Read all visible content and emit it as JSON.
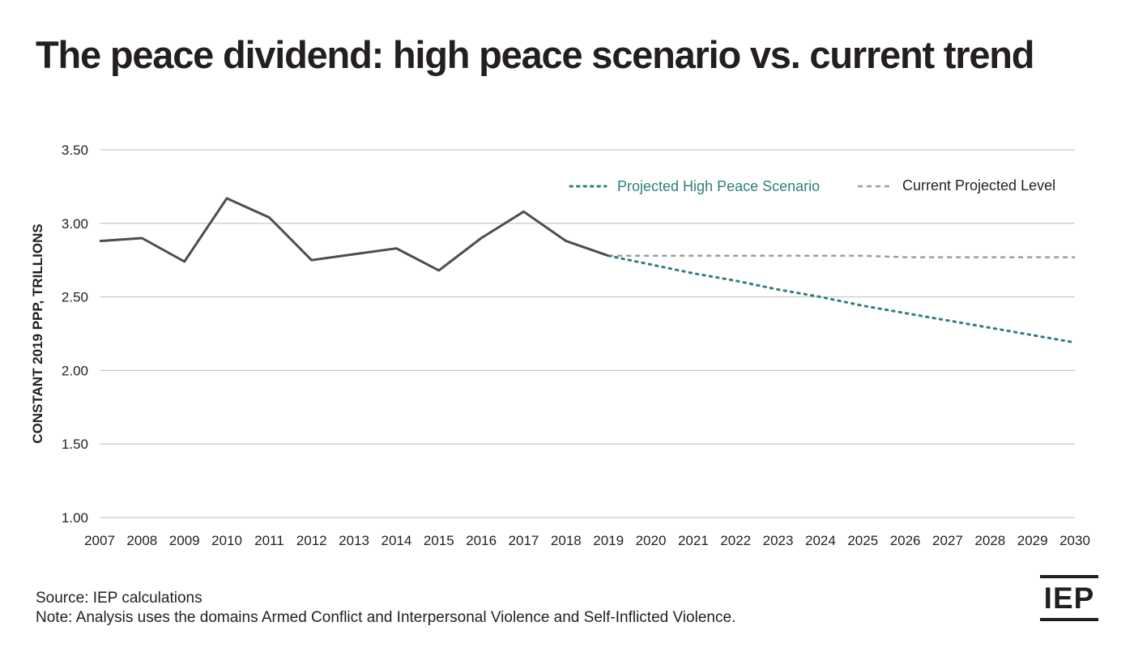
{
  "title": "The peace dividend: high peace scenario vs. current trend",
  "source": "Source: IEP calculations",
  "note": "Note: Analysis uses the domains Armed Conflict and Interpersonal Violence and Self-Inflicted Violence.",
  "logo_text": "IEP",
  "colors": {
    "historical": "#4d4d4f",
    "high_peace": "#2e7f7d",
    "current": "#9d9d9d",
    "grid": "#bdbdbd",
    "text": "#231f20"
  },
  "chart_data": {
    "type": "line",
    "ylabel": "CONSTANT 2019 PPP, TRILLIONS",
    "xlabel": "",
    "ylim": [
      1.0,
      3.5
    ],
    "yticks": [
      "1.00",
      "1.50",
      "2.00",
      "2.50",
      "3.00",
      "3.50"
    ],
    "x": [
      2007,
      2008,
      2009,
      2010,
      2011,
      2012,
      2013,
      2014,
      2015,
      2016,
      2017,
      2018,
      2019,
      2020,
      2021,
      2022,
      2023,
      2024,
      2025,
      2026,
      2027,
      2028,
      2029,
      2030
    ],
    "grid": true,
    "legend_position": "top-right",
    "legend": [
      "Projected High Peace Scenario",
      "Current Projected Level"
    ],
    "series": [
      {
        "name": "",
        "style": "solid",
        "x": [
          2007,
          2008,
          2009,
          2010,
          2011,
          2012,
          2013,
          2014,
          2015,
          2016,
          2017,
          2018,
          2019
        ],
        "values": [
          2.88,
          2.9,
          2.74,
          3.17,
          3.04,
          2.75,
          2.79,
          2.83,
          2.68,
          2.9,
          3.08,
          2.88,
          2.78
        ]
      },
      {
        "name": "Projected High Peace Scenario",
        "style": "dotted",
        "x": [
          2019,
          2020,
          2021,
          2022,
          2023,
          2024,
          2025,
          2026,
          2027,
          2028,
          2029,
          2030
        ],
        "values": [
          2.78,
          2.72,
          2.66,
          2.61,
          2.55,
          2.5,
          2.44,
          2.39,
          2.34,
          2.29,
          2.24,
          2.19
        ]
      },
      {
        "name": "Current Projected Level",
        "style": "dashed",
        "x": [
          2019,
          2020,
          2021,
          2022,
          2023,
          2024,
          2025,
          2026,
          2027,
          2028,
          2029,
          2030
        ],
        "values": [
          2.78,
          2.78,
          2.78,
          2.78,
          2.78,
          2.78,
          2.78,
          2.77,
          2.77,
          2.77,
          2.77,
          2.77
        ]
      }
    ]
  }
}
